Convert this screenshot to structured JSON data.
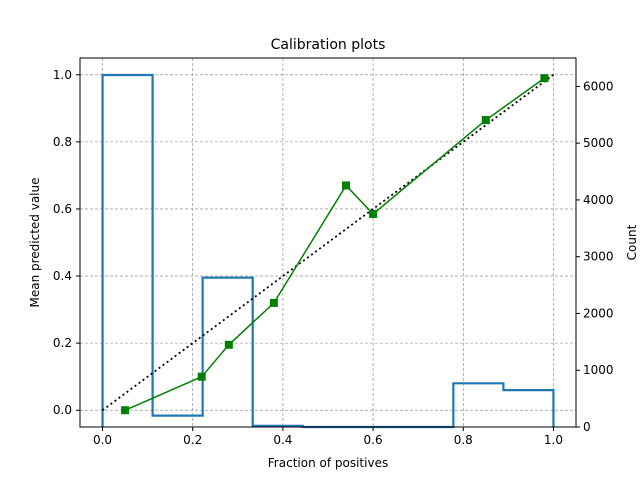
{
  "chart_data": {
    "type": "line",
    "title": "Calibration plots",
    "xlabel": "Fraction of positives",
    "ylabel": "Mean predicted value",
    "y2label": "Count",
    "xlim": [
      -0.05,
      1.05
    ],
    "ylim": [
      -0.05,
      1.05
    ],
    "y2lim": [
      0,
      6500
    ],
    "xticks": [
      0.0,
      0.2,
      0.4,
      0.6,
      0.8,
      1.0
    ],
    "xtick_labels": [
      "0.0",
      "0.2",
      "0.4",
      "0.6",
      "0.8",
      "1.0"
    ],
    "yticks": [
      0.0,
      0.2,
      0.4,
      0.6,
      0.8,
      1.0
    ],
    "ytick_labels": [
      "0.0",
      "0.2",
      "0.4",
      "0.6",
      "0.8",
      "1.0"
    ],
    "y2ticks": [
      0,
      1000,
      2000,
      3000,
      4000,
      5000,
      6000
    ],
    "y2tick_labels": [
      "0",
      "1000",
      "2000",
      "3000",
      "4000",
      "5000",
      "6000"
    ],
    "grid": true,
    "colors": {
      "calibration": "#008000",
      "reference": "#000000",
      "histogram": "#1f77b4",
      "grid": "#808080"
    },
    "reference_line": {
      "style": "dotted",
      "x": [
        0.0,
        1.0
      ],
      "y": [
        0.0,
        1.0
      ]
    },
    "calibration_curve": {
      "marker": "square",
      "x": [
        0.05,
        0.22,
        0.28,
        0.38,
        0.54,
        0.6,
        0.85,
        0.98
      ],
      "y": [
        0.0,
        0.1,
        0.195,
        0.32,
        0.67,
        0.585,
        0.865,
        0.99
      ]
    },
    "histogram": {
      "type": "step",
      "bin_edges": [
        0.0,
        0.111,
        0.222,
        0.333,
        0.444,
        0.556,
        0.667,
        0.778,
        0.889,
        1.0
      ],
      "counts": [
        6200,
        200,
        2630,
        20,
        0,
        0,
        0,
        770,
        650
      ]
    }
  }
}
